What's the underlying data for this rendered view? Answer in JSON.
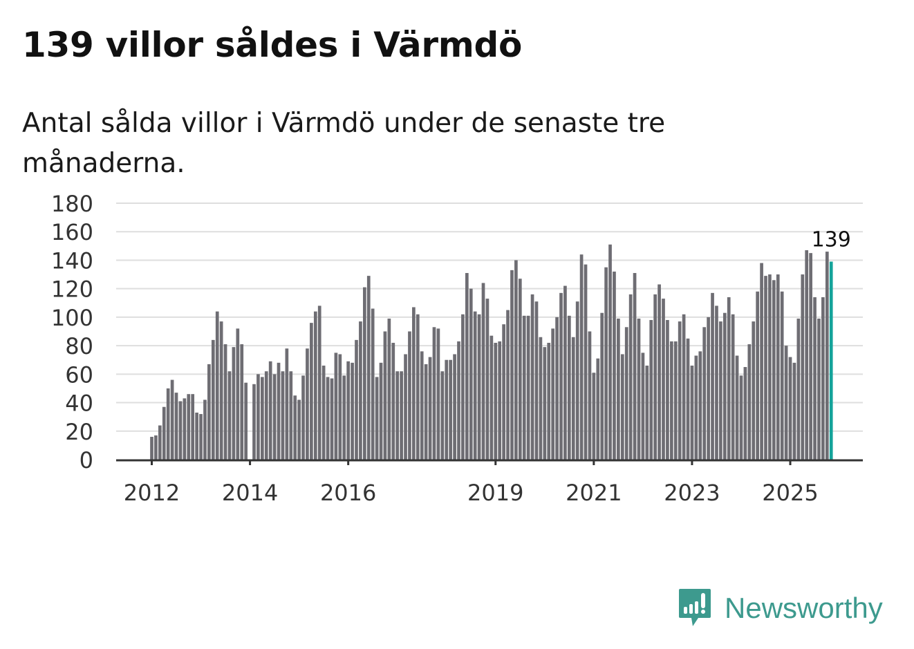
{
  "header": {
    "title": "139 villor såldes i Värmdö",
    "subtitle": "Antal sålda villor i Värmdö under de senaste tre månaderna."
  },
  "brand": {
    "name": "Newsworthy",
    "color": "#3d9a8e"
  },
  "chart_data": {
    "type": "bar",
    "title": "139 villor såldes i Värmdö",
    "subtitle": "Antal sålda villor i Värmdö under de senaste tre månaderna.",
    "xlabel": "",
    "ylabel": "",
    "ylim": [
      0,
      180
    ],
    "yticks": [
      "0",
      "20",
      "40",
      "60",
      "80",
      "100",
      "120",
      "140",
      "160",
      "180"
    ],
    "xticks": [
      {
        "label": "2012",
        "index": 0
      },
      {
        "label": "2014",
        "index": 24
      },
      {
        "label": "2016",
        "index": 48
      },
      {
        "label": "2019",
        "index": 84
      },
      {
        "label": "2021",
        "index": 108
      },
      {
        "label": "2023",
        "index": 132
      },
      {
        "label": "2025",
        "index": 156
      }
    ],
    "grid": true,
    "x_start": "2012-01",
    "frequency": "monthly",
    "bar_color": "#6e6d73",
    "highlight_color": "#14a39a",
    "highlight_label": "139",
    "values": [
      16,
      17,
      24,
      37,
      50,
      56,
      47,
      41,
      43,
      46,
      46,
      33,
      32,
      42,
      67,
      84,
      104,
      97,
      81,
      62,
      79,
      92,
      81,
      54,
      null,
      53,
      60,
      58,
      62,
      69,
      60,
      68,
      62,
      78,
      62,
      45,
      42,
      59,
      78,
      96,
      104,
      108,
      66,
      58,
      57,
      75,
      74,
      59,
      69,
      68,
      84,
      97,
      121,
      129,
      106,
      58,
      68,
      90,
      99,
      82,
      62,
      62,
      74,
      90,
      107,
      102,
      76,
      67,
      72,
      93,
      92,
      62,
      70,
      70,
      74,
      83,
      102,
      131,
      120,
      104,
      102,
      124,
      113,
      87,
      82,
      83,
      95,
      105,
      133,
      140,
      127,
      101,
      101,
      116,
      111,
      86,
      79,
      82,
      92,
      100,
      117,
      122,
      101,
      86,
      111,
      144,
      137,
      90,
      61,
      71,
      103,
      135,
      151,
      132,
      99,
      74,
      93,
      116,
      131,
      99,
      75,
      66,
      98,
      116,
      123,
      113,
      98,
      83,
      83,
      97,
      102,
      85,
      66,
      73,
      76,
      93,
      100,
      117,
      108,
      97,
      103,
      114,
      102,
      73,
      59,
      65,
      81,
      97,
      118,
      138,
      129,
      130,
      126,
      130,
      118,
      80,
      72,
      68,
      99,
      130,
      147,
      145,
      114,
      99,
      114,
      146,
      139
    ]
  }
}
